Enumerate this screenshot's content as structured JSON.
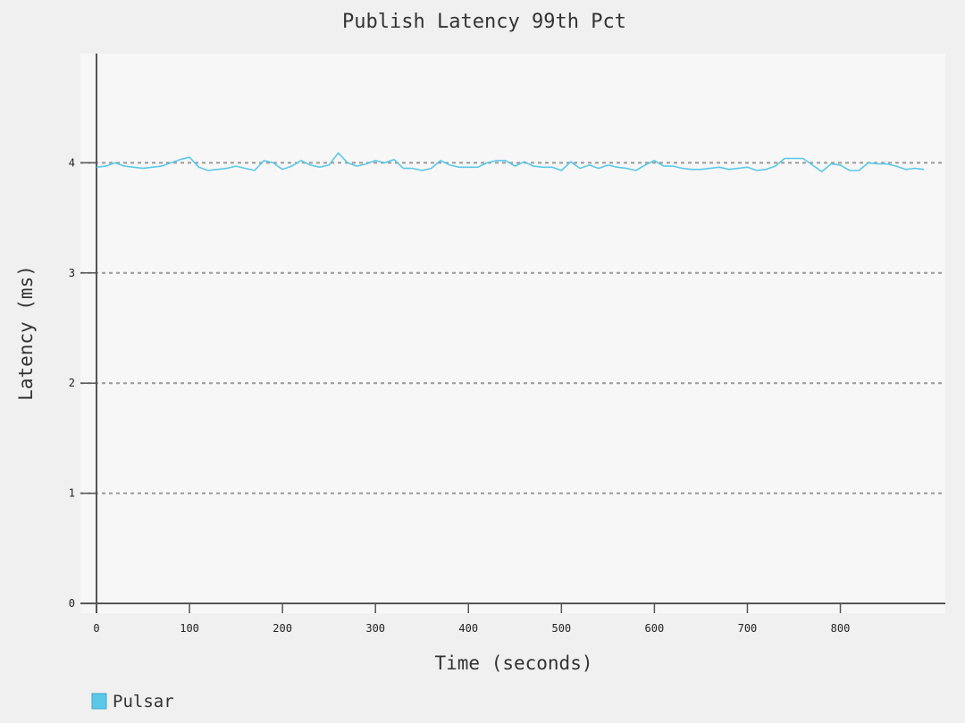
{
  "chart_data": {
    "type": "line",
    "title": "Publish Latency 99th Pct",
    "xlabel": "Time (seconds)",
    "ylabel": "Latency (ms)",
    "xlim": [
      0,
      910
    ],
    "ylim": [
      0,
      5
    ],
    "x_ticks": [
      0,
      100,
      200,
      300,
      400,
      500,
      600,
      700,
      800
    ],
    "y_ticks": [
      0,
      1,
      2,
      3,
      4
    ],
    "grid": "horizontal dashed",
    "legend_position": "bottom-left",
    "colors": {
      "plot_background": "#f7f7f7",
      "page_background": "#f0f0f0",
      "axis": "#555555",
      "grid": "#999999"
    },
    "series": [
      {
        "name": "Pulsar",
        "color": "#5bc8e8",
        "x": [
          0,
          10,
          20,
          30,
          40,
          50,
          60,
          70,
          80,
          90,
          100,
          110,
          120,
          130,
          140,
          150,
          160,
          170,
          180,
          190,
          200,
          210,
          220,
          230,
          240,
          250,
          260,
          270,
          280,
          290,
          300,
          310,
          320,
          330,
          340,
          350,
          360,
          370,
          380,
          390,
          400,
          410,
          420,
          430,
          440,
          450,
          460,
          470,
          480,
          490,
          500,
          510,
          520,
          530,
          540,
          550,
          560,
          570,
          580,
          590,
          600,
          610,
          620,
          630,
          640,
          650,
          660,
          670,
          680,
          690,
          700,
          710,
          720,
          730,
          740,
          750,
          760,
          770,
          780,
          790,
          800,
          810,
          820,
          830,
          840,
          850,
          860,
          870,
          880,
          890
        ],
        "values": [
          3.96,
          3.97,
          4.0,
          3.97,
          3.96,
          3.95,
          3.96,
          3.97,
          4.0,
          4.03,
          4.05,
          3.96,
          3.93,
          3.94,
          3.95,
          3.97,
          3.95,
          3.93,
          4.02,
          4.0,
          3.94,
          3.97,
          4.02,
          3.98,
          3.96,
          3.98,
          4.09,
          4.0,
          3.97,
          3.99,
          4.02,
          4.0,
          4.03,
          3.95,
          3.95,
          3.93,
          3.95,
          4.02,
          3.98,
          3.96,
          3.96,
          3.96,
          4.0,
          4.02,
          4.02,
          3.97,
          4.01,
          3.97,
          3.96,
          3.96,
          3.93,
          4.01,
          3.95,
          3.98,
          3.95,
          3.98,
          3.96,
          3.95,
          3.93,
          3.98,
          4.02,
          3.97,
          3.97,
          3.95,
          3.94,
          3.94,
          3.95,
          3.96,
          3.94,
          3.95,
          3.96,
          3.93,
          3.94,
          3.97,
          4.04,
          4.04,
          4.04,
          3.98,
          3.92,
          3.99,
          3.98,
          3.93,
          3.93,
          4.0,
          3.99,
          3.99,
          3.97,
          3.94,
          3.95,
          3.94
        ]
      }
    ]
  }
}
